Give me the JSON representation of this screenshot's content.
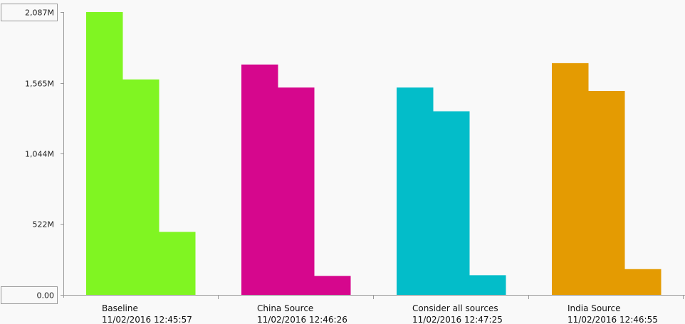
{
  "chart_data": {
    "type": "bar",
    "y_axis": {
      "min": 0,
      "max": 2087,
      "unit": "M",
      "tick_labels": [
        "2,087M",
        "1,565M",
        "1,044M",
        "522M",
        "0.00"
      ],
      "tick_values": [
        2087,
        1565,
        1044,
        522,
        0
      ]
    },
    "groups": [
      {
        "label": "Baseline",
        "timestamp": "11/02/2016 12:45:57",
        "color": "#80f522",
        "values": [
          2087,
          1590,
          465
        ]
      },
      {
        "label": "China Source",
        "timestamp": "11/02/2016 12:46:26",
        "color": "#d6078d",
        "values": [
          1700,
          1530,
          140
        ]
      },
      {
        "label": "Consider all sources",
        "timestamp": "11/02/2016 12:47:25",
        "color": "#03bdc9",
        "values": [
          1530,
          1355,
          145
        ]
      },
      {
        "label": "India Source",
        "timestamp": "11/02/2016 12:46:55",
        "color": "#e49b02",
        "values": [
          1710,
          1505,
          190
        ]
      }
    ],
    "grid": false,
    "legend": "none"
  },
  "colors": {
    "background": "#f9f9f9",
    "axis": "#999999"
  }
}
